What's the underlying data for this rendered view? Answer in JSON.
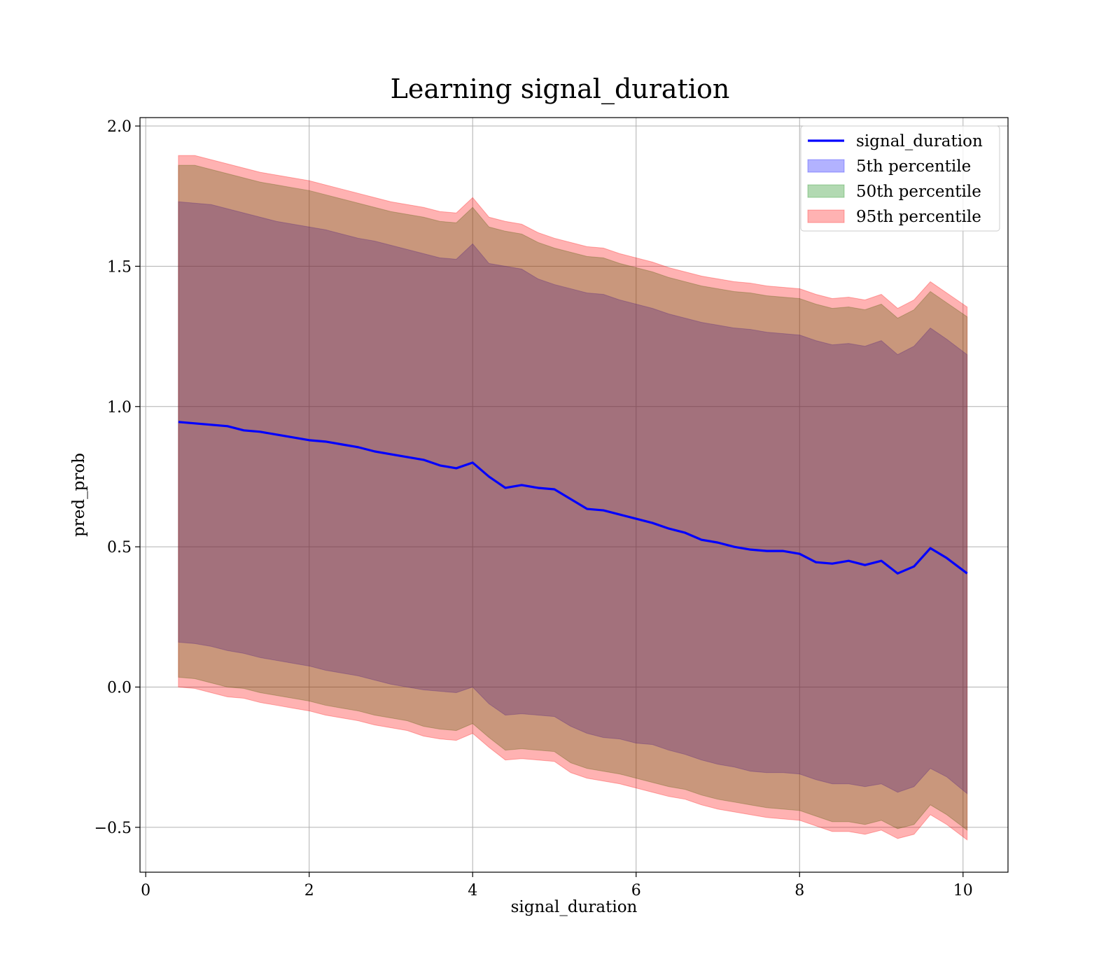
{
  "chart_data": {
    "type": "line",
    "title": "Learning signal_duration",
    "xlabel": "signal_duration",
    "ylabel": "pred_prob",
    "xlim": [
      -0.07,
      10.55
    ],
    "ylim": [
      -0.66,
      2.03
    ],
    "xticks": [
      0,
      2,
      4,
      6,
      8,
      10
    ],
    "yticks": [
      -0.5,
      0.0,
      0.5,
      1.0,
      1.5,
      2.0
    ],
    "ytick_labels": [
      "−0.5",
      "0.0",
      "0.5",
      "1.0",
      "1.5",
      "2.0"
    ],
    "grid": true,
    "legend_position": "top-right",
    "x": [
      0.4,
      0.6,
      0.8,
      1.0,
      1.2,
      1.4,
      1.6,
      1.8,
      2.0,
      2.2,
      2.4,
      2.6,
      2.8,
      3.0,
      3.2,
      3.4,
      3.6,
      3.8,
      4.0,
      4.2,
      4.4,
      4.6,
      4.8,
      5.0,
      5.2,
      5.4,
      5.6,
      5.8,
      6.0,
      6.2,
      6.4,
      6.6,
      6.8,
      7.0,
      7.2,
      7.4,
      7.6,
      7.8,
      8.0,
      8.2,
      8.4,
      8.6,
      8.8,
      9.0,
      9.2,
      9.4,
      9.6,
      9.8,
      10.05
    ],
    "series": [
      {
        "name": "signal_duration",
        "kind": "line",
        "color": "#0000ff",
        "values": [
          0.945,
          0.94,
          0.935,
          0.93,
          0.915,
          0.91,
          0.9,
          0.89,
          0.88,
          0.875,
          0.865,
          0.855,
          0.84,
          0.83,
          0.82,
          0.81,
          0.79,
          0.78,
          0.8,
          0.75,
          0.71,
          0.72,
          0.71,
          0.705,
          0.67,
          0.635,
          0.63,
          0.615,
          0.6,
          0.585,
          0.565,
          0.55,
          0.525,
          0.515,
          0.5,
          0.49,
          0.485,
          0.485,
          0.475,
          0.445,
          0.44,
          0.45,
          0.435,
          0.45,
          0.405,
          0.43,
          0.495,
          0.46,
          0.405
        ]
      },
      {
        "name": "5th percentile",
        "kind": "band",
        "color": "#0000ff",
        "lower": [
          0.16,
          0.155,
          0.145,
          0.13,
          0.12,
          0.105,
          0.095,
          0.085,
          0.075,
          0.06,
          0.05,
          0.04,
          0.025,
          0.01,
          0.0,
          -0.01,
          -0.015,
          -0.02,
          0.0,
          -0.06,
          -0.1,
          -0.095,
          -0.1,
          -0.105,
          -0.14,
          -0.165,
          -0.18,
          -0.185,
          -0.2,
          -0.205,
          -0.225,
          -0.24,
          -0.26,
          -0.275,
          -0.285,
          -0.3,
          -0.305,
          -0.305,
          -0.31,
          -0.33,
          -0.345,
          -0.345,
          -0.355,
          -0.345,
          -0.375,
          -0.355,
          -0.29,
          -0.32,
          -0.38
        ],
        "upper": [
          1.73,
          1.725,
          1.72,
          1.705,
          1.69,
          1.675,
          1.66,
          1.65,
          1.64,
          1.63,
          1.615,
          1.6,
          1.59,
          1.575,
          1.56,
          1.545,
          1.53,
          1.525,
          1.58,
          1.51,
          1.5,
          1.49,
          1.455,
          1.435,
          1.42,
          1.405,
          1.4,
          1.38,
          1.365,
          1.35,
          1.33,
          1.315,
          1.3,
          1.29,
          1.28,
          1.275,
          1.265,
          1.26,
          1.255,
          1.235,
          1.22,
          1.225,
          1.215,
          1.235,
          1.185,
          1.215,
          1.28,
          1.24,
          1.185
        ]
      },
      {
        "name": "50th percentile",
        "kind": "band",
        "color": "#008000",
        "lower": [
          0.035,
          0.03,
          0.015,
          0.0,
          -0.005,
          -0.02,
          -0.03,
          -0.04,
          -0.05,
          -0.065,
          -0.075,
          -0.085,
          -0.1,
          -0.11,
          -0.12,
          -0.14,
          -0.15,
          -0.155,
          -0.13,
          -0.18,
          -0.225,
          -0.22,
          -0.225,
          -0.23,
          -0.27,
          -0.29,
          -0.3,
          -0.31,
          -0.325,
          -0.34,
          -0.355,
          -0.365,
          -0.385,
          -0.4,
          -0.41,
          -0.42,
          -0.43,
          -0.435,
          -0.44,
          -0.46,
          -0.48,
          -0.48,
          -0.49,
          -0.475,
          -0.505,
          -0.49,
          -0.42,
          -0.455,
          -0.51
        ],
        "upper": [
          1.86,
          1.86,
          1.845,
          1.83,
          1.815,
          1.8,
          1.79,
          1.78,
          1.77,
          1.755,
          1.74,
          1.725,
          1.71,
          1.695,
          1.685,
          1.675,
          1.66,
          1.655,
          1.71,
          1.64,
          1.625,
          1.615,
          1.585,
          1.565,
          1.55,
          1.535,
          1.53,
          1.51,
          1.495,
          1.48,
          1.46,
          1.445,
          1.43,
          1.42,
          1.41,
          1.405,
          1.395,
          1.39,
          1.385,
          1.365,
          1.35,
          1.355,
          1.345,
          1.365,
          1.315,
          1.345,
          1.41,
          1.37,
          1.32
        ]
      },
      {
        "name": "95th percentile",
        "kind": "band",
        "color": "#ff0000",
        "lower": [
          0.0,
          -0.005,
          -0.02,
          -0.035,
          -0.04,
          -0.055,
          -0.065,
          -0.075,
          -0.085,
          -0.1,
          -0.11,
          -0.12,
          -0.135,
          -0.145,
          -0.155,
          -0.175,
          -0.185,
          -0.19,
          -0.165,
          -0.215,
          -0.26,
          -0.255,
          -0.26,
          -0.265,
          -0.305,
          -0.325,
          -0.335,
          -0.345,
          -0.36,
          -0.375,
          -0.39,
          -0.4,
          -0.42,
          -0.435,
          -0.445,
          -0.455,
          -0.465,
          -0.47,
          -0.475,
          -0.495,
          -0.515,
          -0.515,
          -0.525,
          -0.51,
          -0.54,
          -0.525,
          -0.455,
          -0.49,
          -0.545
        ],
        "upper": [
          1.895,
          1.895,
          1.88,
          1.865,
          1.85,
          1.835,
          1.825,
          1.815,
          1.805,
          1.79,
          1.775,
          1.76,
          1.745,
          1.73,
          1.72,
          1.71,
          1.695,
          1.69,
          1.745,
          1.675,
          1.66,
          1.65,
          1.62,
          1.6,
          1.585,
          1.57,
          1.565,
          1.545,
          1.53,
          1.515,
          1.495,
          1.48,
          1.465,
          1.455,
          1.445,
          1.44,
          1.43,
          1.425,
          1.42,
          1.4,
          1.385,
          1.39,
          1.38,
          1.4,
          1.35,
          1.38,
          1.445,
          1.405,
          1.355
        ]
      }
    ]
  }
}
